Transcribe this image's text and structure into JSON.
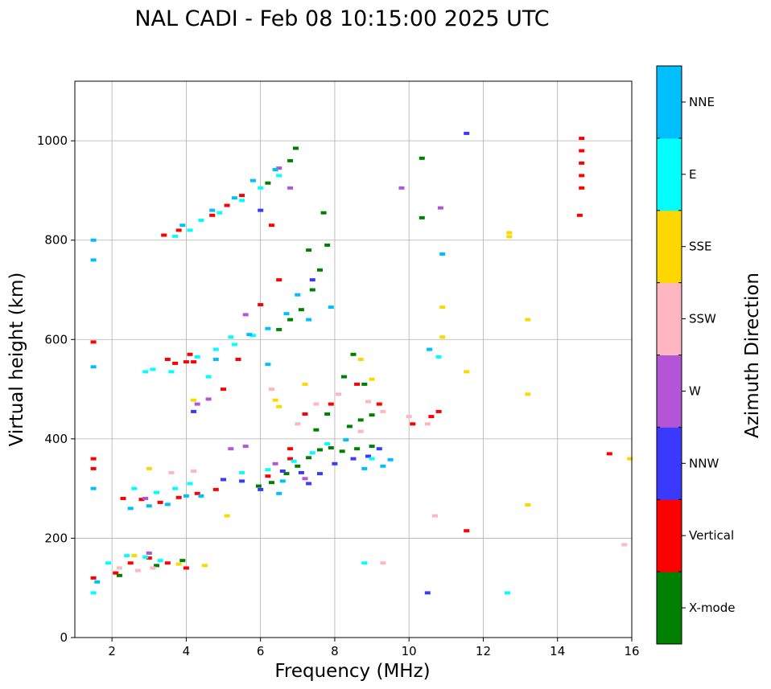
{
  "chart_data": {
    "type": "scatter",
    "title": "NAL CADI - Feb 08 10:15:00 2025 UTC",
    "xlabel": "Frequency (MHz)",
    "ylabel": "Virtual height (km)",
    "xlim": [
      1,
      16
    ],
    "ylim": [
      0,
      1120
    ],
    "xticks": [
      2,
      4,
      6,
      8,
      10,
      12,
      14,
      16
    ],
    "yticks": [
      0,
      200,
      400,
      600,
      800,
      1000
    ],
    "grid": true,
    "colorbar": {
      "label": "Azimuth Direction",
      "categories": [
        {
          "name": "X-mode",
          "color": "#008000"
        },
        {
          "name": "Vertical",
          "color": "#ff0000"
        },
        {
          "name": "NNW",
          "color": "#3a3aff"
        },
        {
          "name": "W",
          "color": "#b355d6"
        },
        {
          "name": "SSW",
          "color": "#ffb6c1"
        },
        {
          "name": "SSE",
          "color": "#ffd700"
        },
        {
          "name": "E",
          "color": "#00ffff"
        },
        {
          "name": "NNE",
          "color": "#00bfff"
        }
      ]
    },
    "series": [
      {
        "name": "X-mode",
        "points": [
          [
            5.95,
            305
          ],
          [
            6.3,
            312
          ],
          [
            6.7,
            330
          ],
          [
            7.0,
            345
          ],
          [
            7.3,
            362
          ],
          [
            7.6,
            378
          ],
          [
            7.9,
            382
          ],
          [
            8.2,
            375
          ],
          [
            8.6,
            380
          ],
          [
            9.0,
            385
          ],
          [
            8.4,
            425
          ],
          [
            8.7,
            438
          ],
          [
            9.0,
            448
          ],
          [
            7.5,
            418
          ],
          [
            7.8,
            450
          ],
          [
            6.5,
            620
          ],
          [
            6.8,
            640
          ],
          [
            7.1,
            660
          ],
          [
            7.4,
            700
          ],
          [
            7.6,
            740
          ],
          [
            7.8,
            790
          ],
          [
            7.3,
            780
          ],
          [
            7.7,
            855
          ],
          [
            6.8,
            960
          ],
          [
            6.95,
            985
          ],
          [
            10.35,
            965
          ],
          [
            10.35,
            845
          ],
          [
            8.25,
            525
          ],
          [
            8.8,
            510
          ],
          [
            8.5,
            570
          ],
          [
            6.2,
            915
          ],
          [
            2.2,
            125
          ],
          [
            3.2,
            145
          ],
          [
            3.9,
            155
          ]
        ]
      },
      {
        "name": "Vertical",
        "points": [
          [
            1.5,
            120
          ],
          [
            2.1,
            130
          ],
          [
            2.5,
            150
          ],
          [
            3.0,
            160
          ],
          [
            3.5,
            150
          ],
          [
            4.0,
            140
          ],
          [
            2.3,
            280
          ],
          [
            2.8,
            278
          ],
          [
            3.3,
            272
          ],
          [
            3.8,
            282
          ],
          [
            4.3,
            290
          ],
          [
            4.8,
            298
          ],
          [
            3.5,
            560
          ],
          [
            3.7,
            552
          ],
          [
            4.0,
            555
          ],
          [
            4.2,
            555
          ],
          [
            1.5,
            595
          ],
          [
            1.5,
            360
          ],
          [
            1.5,
            340
          ],
          [
            4.7,
            850
          ],
          [
            3.8,
            820
          ],
          [
            3.4,
            810
          ],
          [
            5.1,
            870
          ],
          [
            5.5,
            890
          ],
          [
            14.65,
            1005
          ],
          [
            14.65,
            980
          ],
          [
            14.65,
            955
          ],
          [
            14.65,
            930
          ],
          [
            14.65,
            905
          ],
          [
            14.6,
            850
          ],
          [
            15.4,
            370
          ],
          [
            11.55,
            215
          ],
          [
            10.1,
            430
          ],
          [
            10.6,
            445
          ],
          [
            10.8,
            455
          ],
          [
            9.2,
            470
          ],
          [
            8.6,
            510
          ],
          [
            7.9,
            470
          ],
          [
            7.2,
            450
          ],
          [
            6.8,
            380
          ],
          [
            6.5,
            720
          ],
          [
            6.3,
            830
          ],
          [
            5.4,
            560
          ],
          [
            4.1,
            570
          ],
          [
            5.0,
            500
          ],
          [
            6.8,
            360
          ],
          [
            6.2,
            325
          ],
          [
            6.0,
            670
          ]
        ]
      },
      {
        "name": "NNW",
        "points": [
          [
            6.6,
            335
          ],
          [
            7.1,
            332
          ],
          [
            7.6,
            330
          ],
          [
            8.0,
            350
          ],
          [
            8.5,
            360
          ],
          [
            8.9,
            365
          ],
          [
            7.3,
            310
          ],
          [
            6.0,
            298
          ],
          [
            5.5,
            315
          ],
          [
            5.0,
            318
          ],
          [
            4.2,
            455
          ],
          [
            10.5,
            90
          ],
          [
            11.55,
            1015
          ],
          [
            9.2,
            380
          ],
          [
            7.4,
            720
          ],
          [
            6.0,
            860
          ]
        ]
      },
      {
        "name": "W",
        "points": [
          [
            5.2,
            380
          ],
          [
            5.6,
            385
          ],
          [
            6.4,
            350
          ],
          [
            7.2,
            320
          ],
          [
            4.6,
            480
          ],
          [
            4.3,
            470
          ],
          [
            3.0,
            170
          ],
          [
            2.9,
            280
          ],
          [
            6.8,
            905
          ],
          [
            9.8,
            905
          ],
          [
            10.85,
            865
          ],
          [
            5.6,
            650
          ],
          [
            6.5,
            945
          ]
        ]
      },
      {
        "name": "SSW",
        "points": [
          [
            2.2,
            140
          ],
          [
            2.7,
            135
          ],
          [
            3.1,
            140
          ],
          [
            3.6,
            332
          ],
          [
            4.2,
            335
          ],
          [
            7.5,
            470
          ],
          [
            8.1,
            490
          ],
          [
            8.9,
            475
          ],
          [
            9.3,
            455
          ],
          [
            10.0,
            445
          ],
          [
            10.5,
            430
          ],
          [
            10.7,
            245
          ],
          [
            9.3,
            150
          ],
          [
            8.7,
            415
          ],
          [
            15.8,
            187
          ],
          [
            6.3,
            500
          ],
          [
            7.0,
            430
          ]
        ]
      },
      {
        "name": "SSE",
        "points": [
          [
            2.6,
            165
          ],
          [
            3.8,
            148
          ],
          [
            4.5,
            145
          ],
          [
            4.2,
            478
          ],
          [
            5.1,
            245
          ],
          [
            6.5,
            465
          ],
          [
            7.2,
            510
          ],
          [
            8.7,
            560
          ],
          [
            9.0,
            520
          ],
          [
            10.9,
            665
          ],
          [
            10.9,
            605
          ],
          [
            11.55,
            535
          ],
          [
            12.7,
            815
          ],
          [
            12.7,
            807
          ],
          [
            13.2,
            640
          ],
          [
            13.2,
            490
          ],
          [
            13.2,
            267
          ],
          [
            15.95,
            360
          ],
          [
            6.4,
            478
          ],
          [
            3.0,
            340
          ]
        ]
      },
      {
        "name": "E",
        "points": [
          [
            1.5,
            90
          ],
          [
            1.9,
            150
          ],
          [
            2.4,
            165
          ],
          [
            2.9,
            162
          ],
          [
            3.3,
            155
          ],
          [
            2.6,
            300
          ],
          [
            3.2,
            292
          ],
          [
            3.7,
            300
          ],
          [
            4.1,
            310
          ],
          [
            5.5,
            332
          ],
          [
            6.2,
            338
          ],
          [
            6.9,
            355
          ],
          [
            7.4,
            372
          ],
          [
            7.8,
            390
          ],
          [
            2.9,
            535
          ],
          [
            3.1,
            540
          ],
          [
            3.6,
            535
          ],
          [
            4.3,
            565
          ],
          [
            4.8,
            580
          ],
          [
            5.3,
            590
          ],
          [
            5.8,
            608
          ],
          [
            3.7,
            808
          ],
          [
            4.1,
            820
          ],
          [
            4.4,
            840
          ],
          [
            4.9,
            855
          ],
          [
            5.5,
            880
          ],
          [
            6.0,
            905
          ],
          [
            6.5,
            930
          ],
          [
            8.8,
            150
          ],
          [
            9.0,
            360
          ],
          [
            10.8,
            565
          ],
          [
            12.65,
            90
          ],
          [
            4.6,
            525
          ],
          [
            5.2,
            605
          ]
        ]
      },
      {
        "name": "NNE",
        "points": [
          [
            1.5,
            800
          ],
          [
            1.5,
            760
          ],
          [
            1.5,
            545
          ],
          [
            1.5,
            300
          ],
          [
            1.6,
            112
          ],
          [
            2.5,
            260
          ],
          [
            3.0,
            265
          ],
          [
            3.5,
            268
          ],
          [
            4.0,
            285
          ],
          [
            4.4,
            285
          ],
          [
            6.5,
            290
          ],
          [
            6.6,
            315
          ],
          [
            7.3,
            640
          ],
          [
            7.9,
            665
          ],
          [
            8.3,
            398
          ],
          [
            8.8,
            340
          ],
          [
            9.3,
            345
          ],
          [
            9.5,
            358
          ],
          [
            10.9,
            772
          ],
          [
            10.55,
            580
          ],
          [
            4.8,
            560
          ],
          [
            5.7,
            610
          ],
          [
            6.2,
            622
          ],
          [
            6.7,
            652
          ],
          [
            7.0,
            690
          ],
          [
            3.9,
            830
          ],
          [
            4.7,
            860
          ],
          [
            5.3,
            885
          ],
          [
            5.8,
            920
          ],
          [
            6.4,
            942
          ],
          [
            6.2,
            550
          ]
        ]
      }
    ]
  }
}
